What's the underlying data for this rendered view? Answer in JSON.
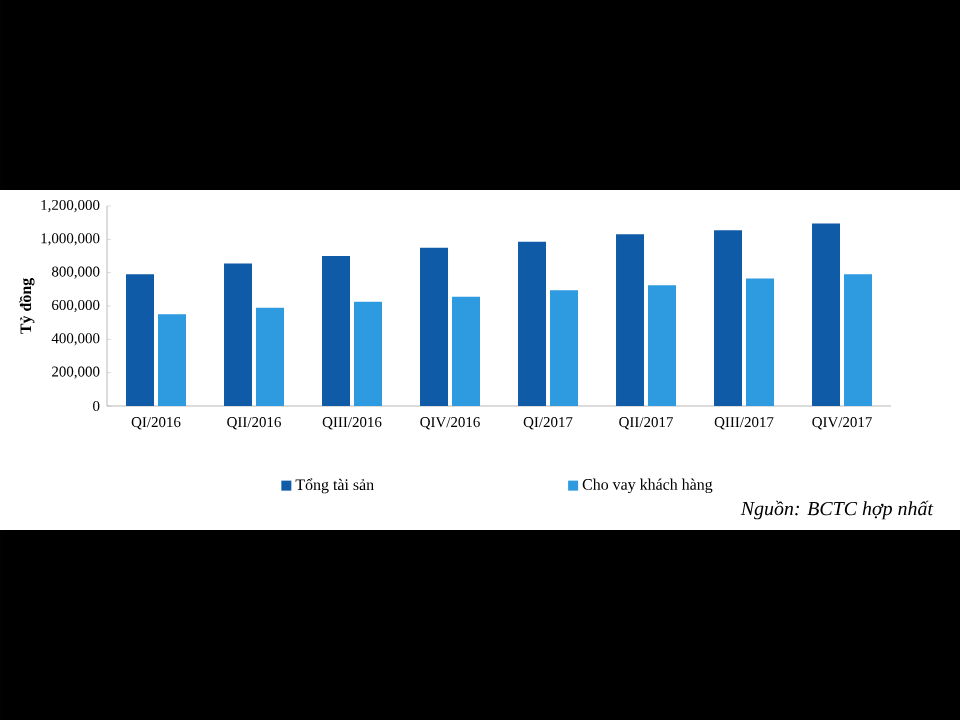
{
  "chart_data": {
    "type": "bar",
    "ylabel": "Tỷ đồng",
    "categories": [
      "QI/2016",
      "QII/2016",
      "QIII/2016",
      "QIV/2016",
      "QI/2017",
      "QII/2017",
      "QIII/2017",
      "QIV/2017"
    ],
    "series": [
      {
        "name": "Tổng tài sản",
        "color": "#0f5ba7",
        "values": [
          790000,
          855000,
          900000,
          950000,
          985000,
          1030000,
          1055000,
          1095000
        ]
      },
      {
        "name": "Cho vay khách hàng",
        "color": "#2e9be0",
        "values": [
          550000,
          590000,
          625000,
          655000,
          695000,
          725000,
          765000,
          790000
        ]
      }
    ],
    "ylim": [
      0,
      1200000
    ],
    "yticks": [
      {
        "value": 0,
        "label": "0"
      },
      {
        "value": 200000,
        "label": "200,000"
      },
      {
        "value": 400000,
        "label": "400,000"
      },
      {
        "value": 600000,
        "label": "600,000"
      },
      {
        "value": 800000,
        "label": "800,000"
      },
      {
        "value": 1000000,
        "label": "1,000,000"
      },
      {
        "value": 1200000,
        "label": "1,200,000"
      }
    ],
    "legend": "bottom",
    "grid": false,
    "annotations": [
      "Nguồn: BCTC hợp nhất"
    ]
  }
}
